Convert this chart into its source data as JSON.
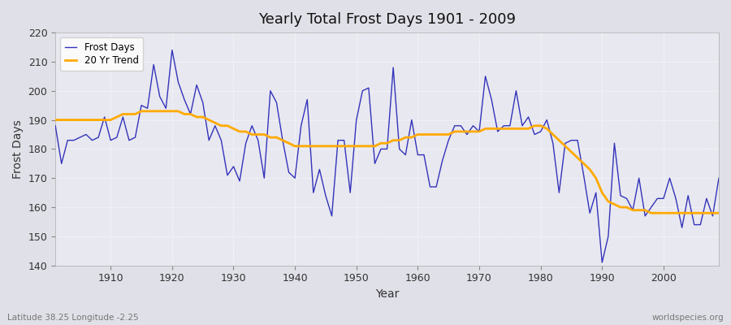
{
  "title": "Yearly Total Frost Days 1901 - 2009",
  "xlabel": "Year",
  "ylabel": "Frost Days",
  "subtitle": "Latitude 38.25 Longitude -2.25",
  "watermark": "worldspecies.org",
  "legend_labels": [
    "Frost Days",
    "20 Yr Trend"
  ],
  "line_color": "#3333bb",
  "trend_color": "#ffaa00",
  "fig_bg_color": "#e0e0e8",
  "plot_bg_color": "#e8e8f0",
  "ylim": [
    140,
    220
  ],
  "yticks": [
    140,
    150,
    160,
    170,
    180,
    190,
    200,
    210,
    220
  ],
  "xticks": [
    1910,
    1920,
    1930,
    1940,
    1950,
    1960,
    1970,
    1980,
    1990,
    2000
  ],
  "years": [
    1901,
    1902,
    1903,
    1904,
    1905,
    1906,
    1907,
    1908,
    1909,
    1910,
    1911,
    1912,
    1913,
    1914,
    1915,
    1916,
    1917,
    1918,
    1919,
    1920,
    1921,
    1922,
    1923,
    1924,
    1925,
    1926,
    1927,
    1928,
    1929,
    1930,
    1931,
    1932,
    1933,
    1934,
    1935,
    1936,
    1937,
    1938,
    1939,
    1940,
    1941,
    1942,
    1943,
    1944,
    1945,
    1946,
    1947,
    1948,
    1949,
    1950,
    1951,
    1952,
    1953,
    1954,
    1955,
    1956,
    1957,
    1958,
    1959,
    1960,
    1961,
    1962,
    1963,
    1964,
    1965,
    1966,
    1967,
    1968,
    1969,
    1970,
    1971,
    1972,
    1973,
    1974,
    1975,
    1976,
    1977,
    1978,
    1979,
    1980,
    1981,
    1982,
    1983,
    1984,
    1985,
    1986,
    1987,
    1988,
    1989,
    1990,
    1991,
    1992,
    1993,
    1994,
    1995,
    1996,
    1997,
    1998,
    1999,
    2000,
    2001,
    2002,
    2003,
    2004,
    2005,
    2006,
    2007,
    2008,
    2009
  ],
  "frost_days": [
    188,
    175,
    183,
    183,
    184,
    185,
    183,
    184,
    191,
    183,
    184,
    191,
    183,
    184,
    195,
    194,
    209,
    198,
    194,
    214,
    203,
    197,
    192,
    202,
    196,
    183,
    188,
    183,
    171,
    174,
    169,
    182,
    188,
    183,
    170,
    200,
    196,
    183,
    172,
    170,
    188,
    197,
    165,
    173,
    164,
    157,
    183,
    183,
    165,
    190,
    200,
    201,
    175,
    180,
    180,
    208,
    180,
    178,
    190,
    178,
    178,
    167,
    167,
    176,
    183,
    188,
    188,
    185,
    188,
    186,
    205,
    197,
    186,
    188,
    188,
    200,
    188,
    191,
    185,
    186,
    190,
    182,
    165,
    182,
    183,
    183,
    171,
    158,
    165,
    141,
    150,
    182,
    164,
    163,
    159,
    170,
    157,
    160,
    163,
    163,
    170,
    163,
    153,
    164,
    154,
    154,
    163,
    157,
    170
  ],
  "trend": [
    190,
    190,
    190,
    190,
    190,
    190,
    190,
    190,
    190,
    190,
    191,
    192,
    192,
    192,
    193,
    193,
    193,
    193,
    193,
    193,
    193,
    192,
    192,
    191,
    191,
    190,
    189,
    188,
    188,
    187,
    186,
    186,
    185,
    185,
    185,
    184,
    184,
    183,
    182,
    181,
    181,
    181,
    181,
    181,
    181,
    181,
    181,
    181,
    181,
    181,
    181,
    181,
    181,
    182,
    182,
    183,
    183,
    184,
    184,
    185,
    185,
    185,
    185,
    185,
    185,
    186,
    186,
    186,
    186,
    186,
    187,
    187,
    187,
    187,
    187,
    187,
    187,
    187,
    188,
    188,
    187,
    185,
    183,
    181,
    179,
    177,
    175,
    173,
    170,
    165,
    162,
    161,
    160,
    160,
    159,
    159,
    159,
    158,
    158,
    158,
    158,
    158,
    158,
    158,
    158,
    158,
    158,
    158,
    158
  ]
}
